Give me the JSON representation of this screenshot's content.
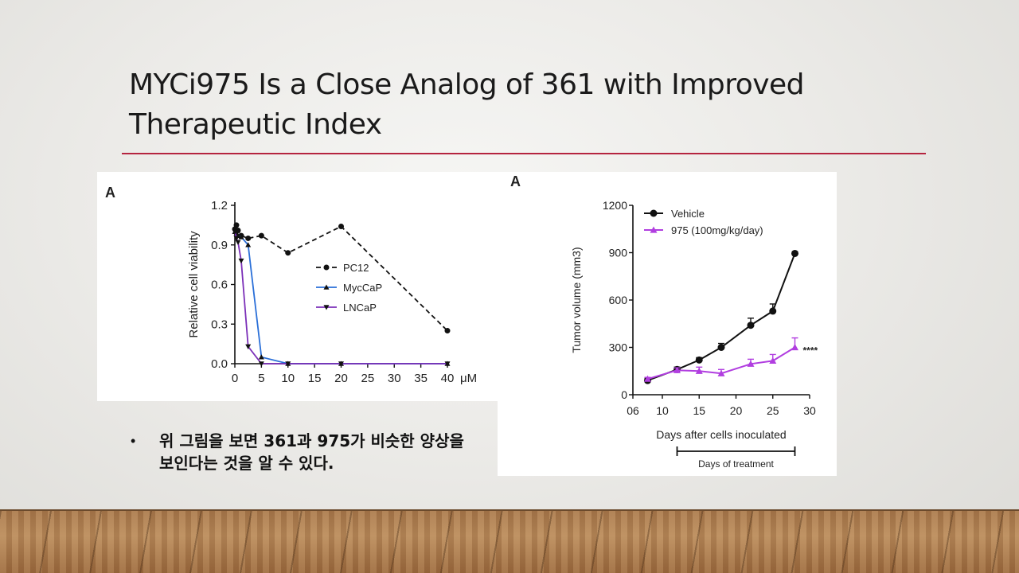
{
  "slide": {
    "title": "MYCi975 Is a Close Analog of 361 with Improved Therapeutic Index",
    "bullet": "위 그림을 보면 361과 975가 비슷한 양상을 보인다는 것을 알 수 있다."
  },
  "chart_data": [
    {
      "type": "scatter",
      "panel_label": "A",
      "ylabel": "Relative cell viability",
      "xunit": "μM",
      "xlim": [
        0,
        40
      ],
      "ylim": [
        0,
        1.2
      ],
      "xticks": [
        0,
        5,
        10,
        15,
        20,
        25,
        30,
        35,
        40
      ],
      "yticks": [
        "0.0",
        "0.3",
        "0.6",
        "0.9",
        "1.2"
      ],
      "legend_position": "center-right",
      "series": [
        {
          "name": "PC12",
          "color": "#111111",
          "marker": "circle",
          "line": "dashed",
          "x": [
            0,
            0.3,
            0.6,
            1.2,
            2.5,
            5,
            10,
            20,
            40
          ],
          "y": [
            1.02,
            1.05,
            1.01,
            0.97,
            0.95,
            0.97,
            0.84,
            1.04,
            0.25
          ]
        },
        {
          "name": "MycCaP",
          "color": "#2a6fd8",
          "marker": "triangle-up",
          "line": "solid",
          "x": [
            0,
            0.3,
            0.6,
            1.2,
            2.5,
            5,
            10,
            20,
            40
          ],
          "y": [
            1.0,
            0.99,
            0.97,
            0.96,
            0.9,
            0.05,
            0.0,
            0.0,
            0.0
          ]
        },
        {
          "name": "LNCaP",
          "color": "#7b2fb8",
          "marker": "triangle-down",
          "line": "solid",
          "x": [
            0,
            0.3,
            0.6,
            1.2,
            2.5,
            5,
            10,
            20,
            40
          ],
          "y": [
            1.0,
            0.95,
            0.92,
            0.78,
            0.13,
            0.0,
            0.0,
            0.0,
            0.0
          ]
        }
      ]
    },
    {
      "type": "line",
      "panel_label": "A",
      "xlabel": "Days after cells inoculated",
      "ylabel": "Tumor volume (mm3)",
      "xlim": [
        6,
        30
      ],
      "ylim": [
        0,
        1200
      ],
      "xticks": [
        "06",
        "10",
        "15",
        "20",
        "25",
        "30"
      ],
      "yticks": [
        "0",
        "300",
        "600",
        "900",
        "1200"
      ],
      "annotation": "Days of treatment",
      "treatment_range": [
        12,
        28
      ],
      "significance": "****",
      "series": [
        {
          "name": "Vehicle",
          "color": "#111111",
          "marker": "circle",
          "x": [
            8,
            12,
            15,
            18,
            22,
            25,
            28
          ],
          "y": [
            90,
            160,
            220,
            300,
            440,
            530,
            895
          ],
          "err": [
            15,
            15,
            15,
            25,
            45,
            45,
            10
          ]
        },
        {
          "name": "975 (100mg/kg/day)",
          "color": "#b13ee0",
          "marker": "triangle-up",
          "x": [
            8,
            12,
            15,
            18,
            22,
            25,
            28
          ],
          "y": [
            100,
            155,
            150,
            135,
            195,
            215,
            300
          ],
          "err": [
            10,
            15,
            25,
            25,
            30,
            40,
            60
          ]
        }
      ]
    }
  ]
}
